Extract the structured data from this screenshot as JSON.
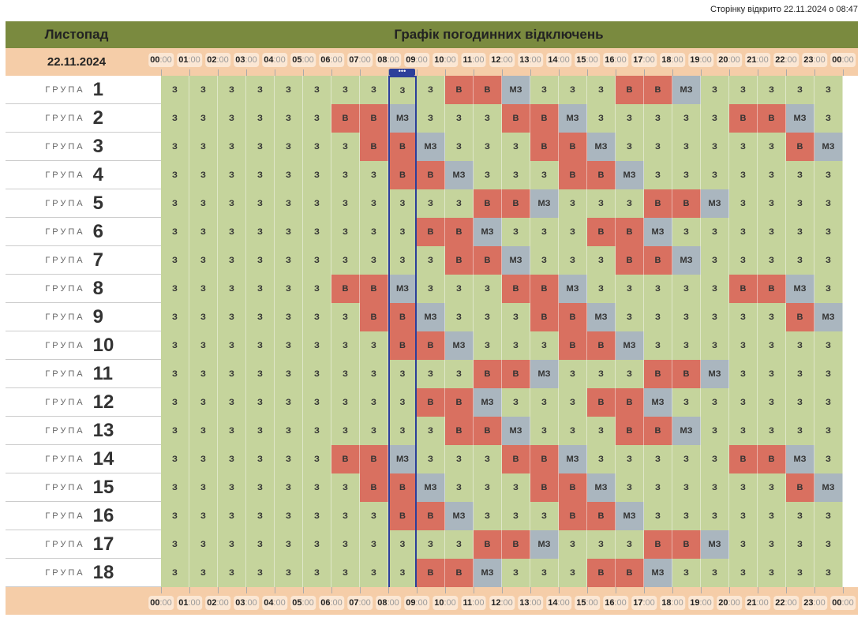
{
  "page_opened": "Сторінку відкрито 22.11.2024 о 08:47",
  "header": {
    "month": "Листопад",
    "title": "Графік погодинних відключень",
    "date": "22.11.2024"
  },
  "hours": [
    "00",
    "01",
    "02",
    "03",
    "04",
    "05",
    "06",
    "07",
    "08",
    "09",
    "10",
    "11",
    "12",
    "13",
    "14",
    "15",
    "16",
    "17",
    "18",
    "19",
    "20",
    "21",
    "22",
    "23",
    "00"
  ],
  "minutes": ":00",
  "group_word": "ГРУПА",
  "current_hour_index": 8,
  "status_labels": {
    "z": "З",
    "v": "В",
    "mz": "МЗ"
  },
  "colors": {
    "z": "#c5d49c",
    "v": "#d97060",
    "mz": "#aab6bf",
    "now": "#2c3f9a"
  },
  "groups": [
    {
      "number": "1",
      "cells": [
        "z",
        "z",
        "z",
        "z",
        "z",
        "z",
        "z",
        "z",
        "z",
        "z",
        "v",
        "v",
        "mz",
        "z",
        "z",
        "z",
        "v",
        "v",
        "mz",
        "z",
        "z",
        "z",
        "z",
        "z"
      ]
    },
    {
      "number": "2",
      "cells": [
        "z",
        "z",
        "z",
        "z",
        "z",
        "z",
        "v",
        "v",
        "mz",
        "z",
        "z",
        "z",
        "v",
        "v",
        "mz",
        "z",
        "z",
        "z",
        "z",
        "z",
        "v",
        "v",
        "mz",
        "z"
      ]
    },
    {
      "number": "3",
      "cells": [
        "z",
        "z",
        "z",
        "z",
        "z",
        "z",
        "z",
        "v",
        "v",
        "mz",
        "z",
        "z",
        "z",
        "v",
        "v",
        "mz",
        "z",
        "z",
        "z",
        "z",
        "z",
        "z",
        "v",
        "mz"
      ]
    },
    {
      "number": "4",
      "cells": [
        "z",
        "z",
        "z",
        "z",
        "z",
        "z",
        "z",
        "z",
        "v",
        "v",
        "mz",
        "z",
        "z",
        "z",
        "v",
        "v",
        "mz",
        "z",
        "z",
        "z",
        "z",
        "z",
        "z",
        "z"
      ]
    },
    {
      "number": "5",
      "cells": [
        "z",
        "z",
        "z",
        "z",
        "z",
        "z",
        "z",
        "z",
        "z",
        "z",
        "z",
        "v",
        "v",
        "mz",
        "z",
        "z",
        "z",
        "v",
        "v",
        "mz",
        "z",
        "z",
        "z",
        "z"
      ]
    },
    {
      "number": "6",
      "cells": [
        "z",
        "z",
        "z",
        "z",
        "z",
        "z",
        "z",
        "z",
        "z",
        "v",
        "v",
        "mz",
        "z",
        "z",
        "z",
        "v",
        "v",
        "mz",
        "z",
        "z",
        "z",
        "z",
        "z",
        "z"
      ]
    },
    {
      "number": "7",
      "cells": [
        "z",
        "z",
        "z",
        "z",
        "z",
        "z",
        "z",
        "z",
        "z",
        "z",
        "v",
        "v",
        "mz",
        "z",
        "z",
        "z",
        "v",
        "v",
        "mz",
        "z",
        "z",
        "z",
        "z",
        "z"
      ]
    },
    {
      "number": "8",
      "cells": [
        "z",
        "z",
        "z",
        "z",
        "z",
        "z",
        "v",
        "v",
        "mz",
        "z",
        "z",
        "z",
        "v",
        "v",
        "mz",
        "z",
        "z",
        "z",
        "z",
        "z",
        "v",
        "v",
        "mz",
        "z"
      ]
    },
    {
      "number": "9",
      "cells": [
        "z",
        "z",
        "z",
        "z",
        "z",
        "z",
        "z",
        "v",
        "v",
        "mz",
        "z",
        "z",
        "z",
        "v",
        "v",
        "mz",
        "z",
        "z",
        "z",
        "z",
        "z",
        "z",
        "v",
        "mz"
      ]
    },
    {
      "number": "10",
      "cells": [
        "z",
        "z",
        "z",
        "z",
        "z",
        "z",
        "z",
        "z",
        "v",
        "v",
        "mz",
        "z",
        "z",
        "z",
        "v",
        "v",
        "mz",
        "z",
        "z",
        "z",
        "z",
        "z",
        "z",
        "z"
      ]
    },
    {
      "number": "11",
      "cells": [
        "z",
        "z",
        "z",
        "z",
        "z",
        "z",
        "z",
        "z",
        "z",
        "z",
        "z",
        "v",
        "v",
        "mz",
        "z",
        "z",
        "z",
        "v",
        "v",
        "mz",
        "z",
        "z",
        "z",
        "z"
      ]
    },
    {
      "number": "12",
      "cells": [
        "z",
        "z",
        "z",
        "z",
        "z",
        "z",
        "z",
        "z",
        "z",
        "v",
        "v",
        "mz",
        "z",
        "z",
        "z",
        "v",
        "v",
        "mz",
        "z",
        "z",
        "z",
        "z",
        "z",
        "z"
      ]
    },
    {
      "number": "13",
      "cells": [
        "z",
        "z",
        "z",
        "z",
        "z",
        "z",
        "z",
        "z",
        "z",
        "z",
        "v",
        "v",
        "mz",
        "z",
        "z",
        "z",
        "v",
        "v",
        "mz",
        "z",
        "z",
        "z",
        "z",
        "z"
      ]
    },
    {
      "number": "14",
      "cells": [
        "z",
        "z",
        "z",
        "z",
        "z",
        "z",
        "v",
        "v",
        "mz",
        "z",
        "z",
        "z",
        "v",
        "v",
        "mz",
        "z",
        "z",
        "z",
        "z",
        "z",
        "v",
        "v",
        "mz",
        "z"
      ]
    },
    {
      "number": "15",
      "cells": [
        "z",
        "z",
        "z",
        "z",
        "z",
        "z",
        "z",
        "v",
        "v",
        "mz",
        "z",
        "z",
        "z",
        "v",
        "v",
        "mz",
        "z",
        "z",
        "z",
        "z",
        "z",
        "z",
        "v",
        "mz"
      ]
    },
    {
      "number": "16",
      "cells": [
        "z",
        "z",
        "z",
        "z",
        "z",
        "z",
        "z",
        "z",
        "v",
        "v",
        "mz",
        "z",
        "z",
        "z",
        "v",
        "v",
        "mz",
        "z",
        "z",
        "z",
        "z",
        "z",
        "z",
        "z"
      ]
    },
    {
      "number": "17",
      "cells": [
        "z",
        "z",
        "z",
        "z",
        "z",
        "z",
        "z",
        "z",
        "z",
        "z",
        "z",
        "v",
        "v",
        "mz",
        "z",
        "z",
        "z",
        "v",
        "v",
        "mz",
        "z",
        "z",
        "z",
        "z"
      ]
    },
    {
      "number": "18",
      "cells": [
        "z",
        "z",
        "z",
        "z",
        "z",
        "z",
        "z",
        "z",
        "z",
        "v",
        "v",
        "mz",
        "z",
        "z",
        "z",
        "v",
        "v",
        "mz",
        "z",
        "z",
        "z",
        "z",
        "z",
        "z"
      ]
    }
  ]
}
